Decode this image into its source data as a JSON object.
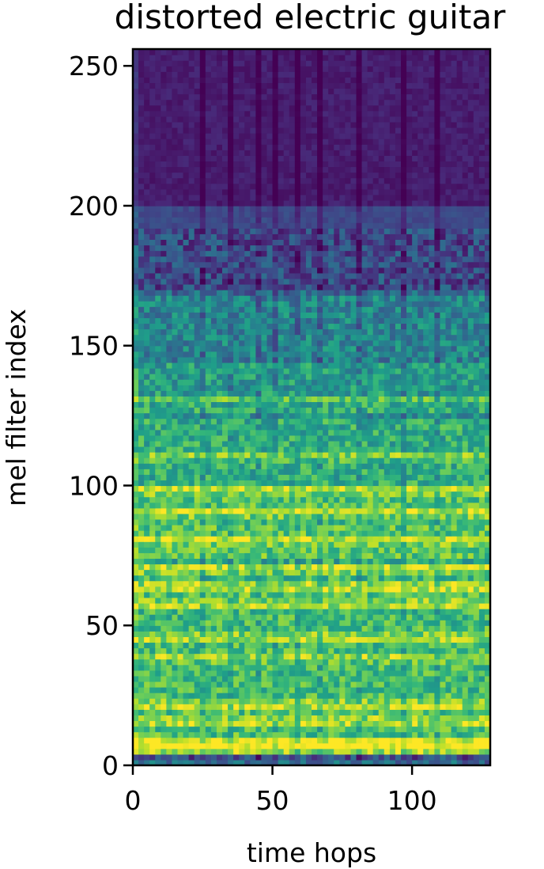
{
  "chart_data": {
    "type": "heatmap",
    "title": "distorted electric guitar",
    "xlabel": "time hops",
    "ylabel": "mel filter index",
    "xlim": [
      0,
      128
    ],
    "ylim": [
      0,
      256
    ],
    "x_ticks": [
      0,
      50,
      100
    ],
    "y_ticks": [
      0,
      50,
      100,
      150,
      200,
      250
    ],
    "x_tick_labels": [
      "0",
      "50",
      "100"
    ],
    "y_tick_labels": [
      "0",
      "50",
      "100",
      "150",
      "200",
      "250"
    ],
    "grid": false,
    "colormap": "viridis",
    "value_range": [
      0,
      1
    ],
    "n_time_hops": 128,
    "n_mel_bins": 256,
    "mean_level_by_band": [
      {
        "from": 0,
        "to": 4,
        "level": 0.35
      },
      {
        "from": 4,
        "to": 10,
        "level": 0.85
      },
      {
        "from": 10,
        "to": 25,
        "level": 0.7
      },
      {
        "from": 25,
        "to": 60,
        "level": 0.68
      },
      {
        "from": 60,
        "to": 100,
        "level": 0.72
      },
      {
        "from": 100,
        "to": 128,
        "level": 0.62
      },
      {
        "from": 128,
        "to": 145,
        "level": 0.55
      },
      {
        "from": 145,
        "to": 170,
        "level": 0.45
      },
      {
        "from": 170,
        "to": 200,
        "level": 0.22
      },
      {
        "from": 200,
        "to": 256,
        "level": 0.08
      }
    ],
    "bright_rows": [
      7,
      15,
      21,
      38,
      45,
      57,
      63,
      70,
      80,
      90,
      98,
      110,
      130
    ],
    "dark_rows": [
      2,
      67,
      72,
      87,
      124,
      144,
      168
    ],
    "bright_columns": [
      0,
      128
    ],
    "dark_columns": [
      25,
      34,
      44,
      50,
      58,
      66,
      80,
      96,
      108
    ]
  }
}
